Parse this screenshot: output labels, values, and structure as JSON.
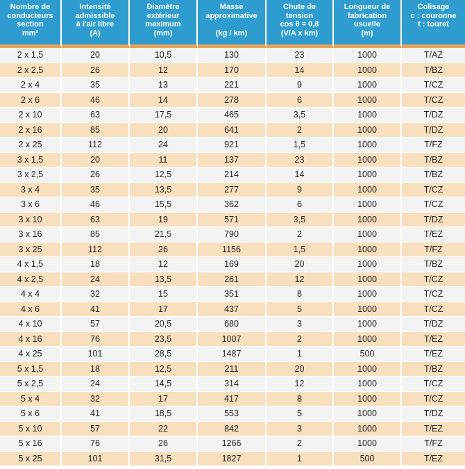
{
  "headers": [
    [
      "Nombre de",
      "conducteurs",
      "section",
      "mm²"
    ],
    [
      "Intensité",
      "admissible",
      "à l'air libre",
      "(A)"
    ],
    [
      "Diamètre",
      "extérieur",
      "maximum",
      "(mm)"
    ],
    [
      "Masse",
      "approximative",
      "",
      "(kg / km)"
    ],
    [
      "Chute de",
      "tension",
      "cos θ = 0,8",
      "(V/A x km)"
    ],
    [
      "Longueur de",
      "fabrication",
      "usuelle",
      "(m)"
    ],
    [
      "Colisage",
      "c : couronne",
      "t : touret",
      ""
    ]
  ],
  "rows": [
    [
      "2 x 1,5",
      "20",
      "10,5",
      "130",
      "23",
      "1000",
      "T/AZ"
    ],
    [
      "2 x 2,5",
      "26",
      "12",
      "170",
      "14",
      "1000",
      "T/BZ"
    ],
    [
      "2 x 4",
      "35",
      "13",
      "221",
      "9",
      "1000",
      "T/CZ"
    ],
    [
      "2 x 6",
      "46",
      "14",
      "278",
      "6",
      "1000",
      "T/CZ"
    ],
    [
      "2 x 10",
      "63",
      "17,5",
      "465",
      "3,5",
      "1000",
      "T/DZ"
    ],
    [
      "2 x 16",
      "85",
      "20",
      "641",
      "2",
      "1000",
      "T/DZ"
    ],
    [
      "2 x 25",
      "112",
      "24",
      "921",
      "1,5",
      "1000",
      "T/FZ"
    ],
    [
      "3 x 1,5",
      "20",
      "11",
      "137",
      "23",
      "1000",
      "T/BZ"
    ],
    [
      "3 x 2,5",
      "26",
      "12,5",
      "214",
      "14",
      "1000",
      "T/BZ"
    ],
    [
      "3 x 4",
      "35",
      "13,5",
      "277",
      "9",
      "1000",
      "T/CZ"
    ],
    [
      "3 x 6",
      "46",
      "15,5",
      "362",
      "6",
      "1000",
      "T/CZ"
    ],
    [
      "3 x 10",
      "63",
      "19",
      "571",
      "3,5",
      "1000",
      "T/DZ"
    ],
    [
      "3 x 16",
      "85",
      "21,5",
      "790",
      "2",
      "1000",
      "T/EZ"
    ],
    [
      "3 x 25",
      "112",
      "26",
      "1156",
      "1,5",
      "1000",
      "T/FZ"
    ],
    [
      "4 x 1,5",
      "18",
      "12",
      "169",
      "20",
      "1000",
      "T/BZ"
    ],
    [
      "4 x 2,5",
      "24",
      "13,5",
      "261",
      "12",
      "1000",
      "T/CZ"
    ],
    [
      "4 x 4",
      "32",
      "15",
      "351",
      "8",
      "1000",
      "T/CZ"
    ],
    [
      "4 x 6",
      "41",
      "17",
      "437",
      "5",
      "1000",
      "T/CZ"
    ],
    [
      "4 x 10",
      "57",
      "20,5",
      "680",
      "3",
      "1000",
      "T/DZ"
    ],
    [
      "4 x 16",
      "76",
      "23,5",
      "1007",
      "2",
      "1000",
      "T/EZ"
    ],
    [
      "4 x 25",
      "101",
      "28,5",
      "1487",
      "1",
      "500",
      "T/EZ"
    ],
    [
      "5 x 1,5",
      "18",
      "12,5",
      "211",
      "20",
      "1000",
      "T/BZ"
    ],
    [
      "5 x 2,5",
      "24",
      "14,5",
      "314",
      "12",
      "1000",
      "T/CZ"
    ],
    [
      "5 x 4",
      "32",
      "17",
      "417",
      "8",
      "1000",
      "T/CZ"
    ],
    [
      "5 x 6",
      "41",
      "18,5",
      "553",
      "5",
      "1000",
      "T/DZ"
    ],
    [
      "5 x 10",
      "57",
      "22",
      "842",
      "3",
      "1000",
      "T/EZ"
    ],
    [
      "5 x 16",
      "76",
      "26",
      "1266",
      "2",
      "1000",
      "T/FZ"
    ],
    [
      "5 x 25",
      "101",
      "31,5",
      "1827",
      "1",
      "500",
      "T/EZ"
    ]
  ],
  "colors": {
    "header_bg": "#2f9ccf",
    "header_rule": "#e9a35a",
    "row_light": "#f3f3f3",
    "row_tan": "#f8dfbe"
  }
}
